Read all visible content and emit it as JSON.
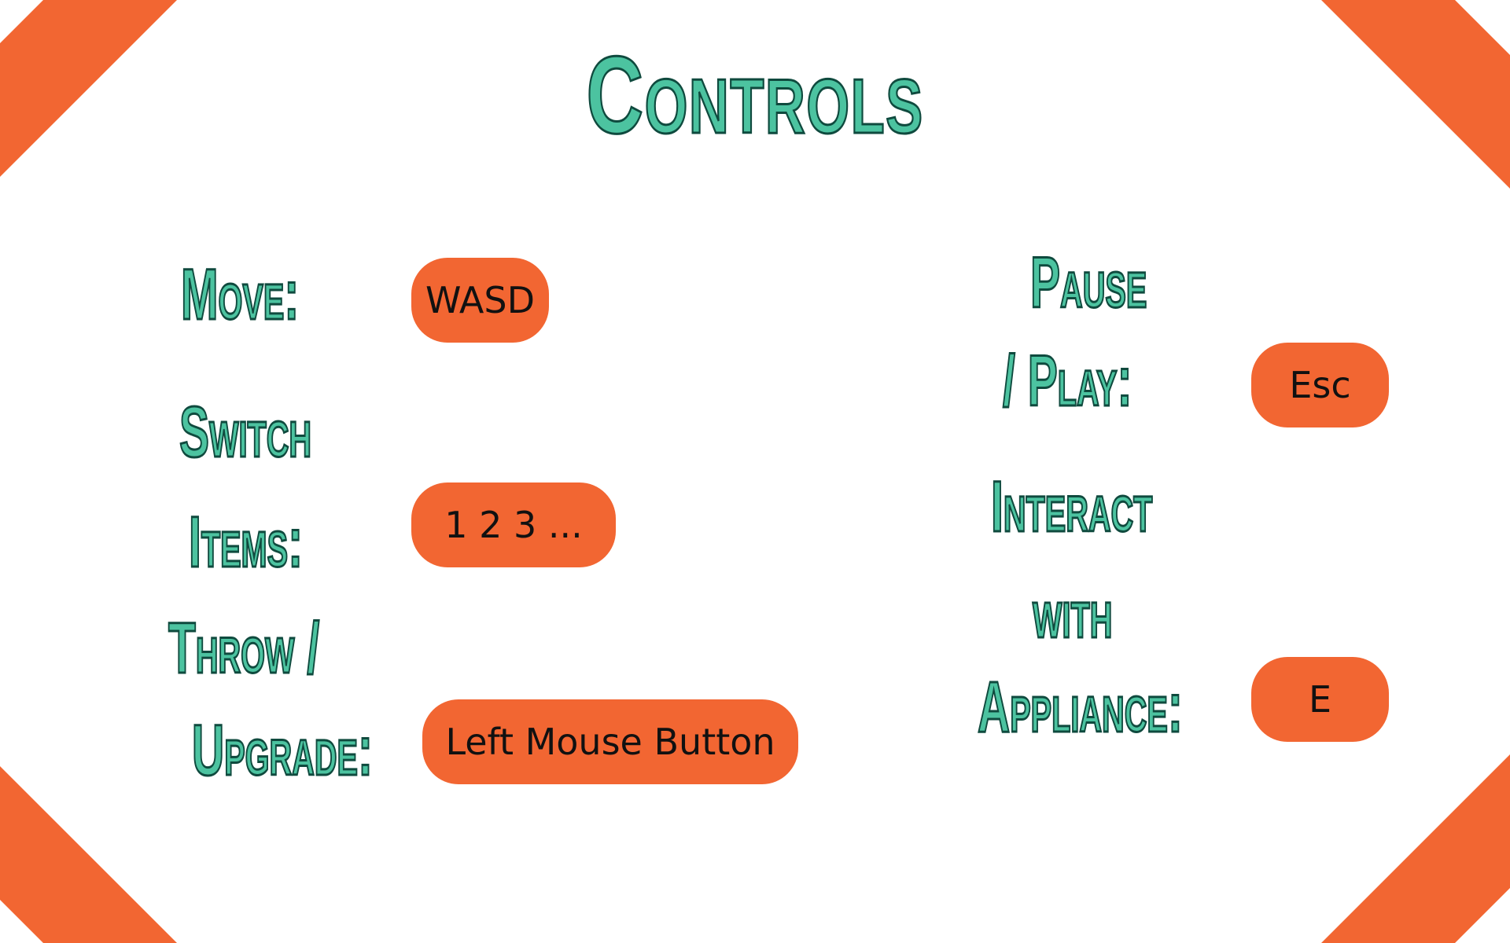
{
  "title": "Controls",
  "colors": {
    "accent": "#f26632",
    "title_fill": "#4cc3a0",
    "title_outline": "#0f4a3e",
    "background": "#ffffff"
  },
  "controls": {
    "move": {
      "label": "Move:",
      "key": "WASD"
    },
    "switch_items": {
      "label_line1": "Switch",
      "label_line2": "Items:",
      "key": "1 2 3 ..."
    },
    "throw_upgrade": {
      "label_line1": "Throw /",
      "label_line2": "Upgrade:",
      "key": "Left Mouse Button"
    },
    "pause_play": {
      "label_line1": "Pause",
      "label_line2": "/  Play:",
      "key": "Esc"
    },
    "interact": {
      "label_line1": "Interact",
      "label_line2": "with",
      "label_line3": "Appliance:",
      "key": "E"
    }
  }
}
